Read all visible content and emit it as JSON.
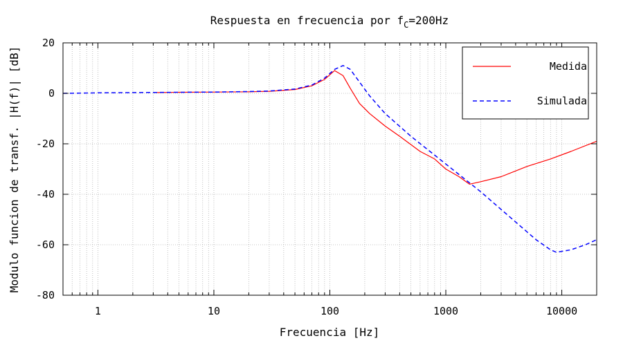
{
  "chart_data": {
    "type": "line",
    "title": "Respuesta en frecuencia por f",
    "title_sub": "C",
    "title_suffix": "=200Hz",
    "xlabel": "Frecuencia [Hz]",
    "ylabel": "Modulo funcion de transf. |H(f)| [dB]",
    "x_scale": "log",
    "xlim": [
      0.5,
      20000
    ],
    "ylim": [
      -80,
      20
    ],
    "x_ticks": [
      {
        "value": 1,
        "label": "1"
      },
      {
        "value": 10,
        "label": "10"
      },
      {
        "value": 100,
        "label": "100"
      },
      {
        "value": 1000,
        "label": "1000"
      },
      {
        "value": 10000,
        "label": "10000"
      }
    ],
    "y_ticks": [
      {
        "value": 20,
        "label": "20"
      },
      {
        "value": 0,
        "label": "0"
      },
      {
        "value": -20,
        "label": "-20"
      },
      {
        "value": -40,
        "label": "-40"
      },
      {
        "value": -60,
        "label": "-60"
      },
      {
        "value": -80,
        "label": "-80"
      }
    ],
    "grid": true,
    "legend_position": "top-right",
    "series": [
      {
        "name": "Medida",
        "color": "#ff0000",
        "style": "solid",
        "x": [
          3,
          5,
          10,
          20,
          30,
          50,
          70,
          90,
          110,
          130,
          150,
          180,
          220,
          300,
          400,
          600,
          800,
          1000,
          1300,
          1600,
          2000,
          3000,
          5000,
          8000,
          12000,
          20000
        ],
        "y": [
          0.3,
          0.4,
          0.5,
          0.6,
          0.8,
          1.5,
          3,
          5.5,
          9,
          7,
          2,
          -4,
          -8,
          -13,
          -17,
          -23,
          -26,
          -30,
          -33,
          -36,
          -35,
          -33,
          -29,
          -26,
          -23,
          -19
        ]
      },
      {
        "name": "Simulada",
        "color": "#0000ff",
        "style": "dashed",
        "x": [
          0.5,
          1,
          2,
          5,
          10,
          20,
          30,
          50,
          70,
          90,
          110,
          130,
          150,
          180,
          220,
          300,
          500,
          1000,
          2000,
          4000,
          6000,
          8000,
          9000,
          12000,
          16000,
          20000
        ],
        "y": [
          0,
          0.2,
          0.3,
          0.4,
          0.5,
          0.7,
          0.9,
          1.7,
          3.3,
          6,
          9.5,
          11,
          9.5,
          4.5,
          -1,
          -8,
          -17,
          -28,
          -39,
          -51,
          -58,
          -62,
          -63,
          -62,
          -60,
          -58
        ]
      }
    ]
  }
}
